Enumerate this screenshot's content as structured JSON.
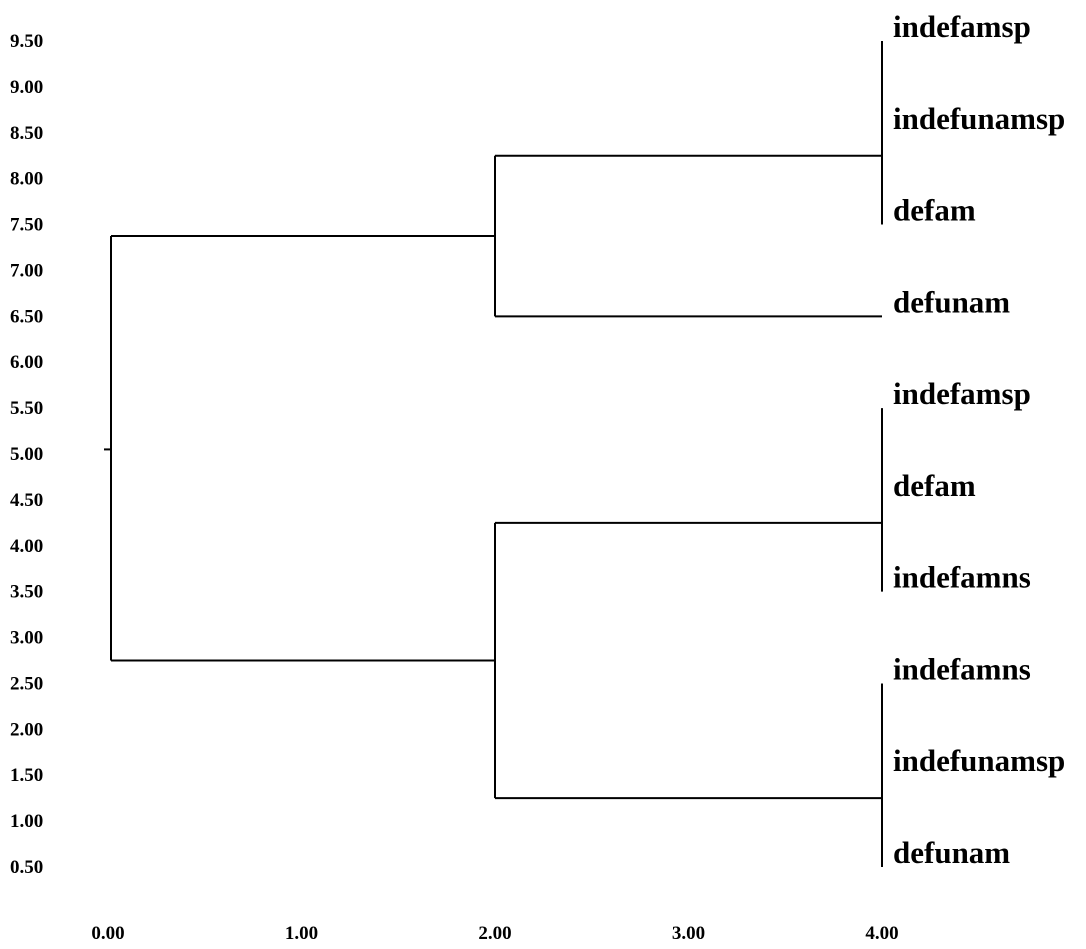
{
  "chart_data": {
    "type": "dendrogram",
    "x_ticks": [
      "0.00",
      "1.00",
      "2.00",
      "3.00",
      "4.00"
    ],
    "y_ticks": [
      "9.50",
      "9.00",
      "8.50",
      "8.00",
      "7.50",
      "7.00",
      "6.50",
      "6.00",
      "5.50",
      "5.00",
      "4.50",
      "4.00",
      "3.50",
      "3.00",
      "2.50",
      "2.00",
      "1.50",
      "1.00",
      "0.50"
    ],
    "xlim": [
      0,
      4
    ],
    "ylim": [
      0.5,
      9.5
    ],
    "leaves": [
      {
        "label": "indefamsp",
        "y": 9.5
      },
      {
        "label": "indefunamsp",
        "y": 8.5
      },
      {
        "label": "defam",
        "y": 7.5
      },
      {
        "label": "defunam",
        "y": 6.5
      },
      {
        "label": "indefamsp",
        "y": 5.5
      },
      {
        "label": "defam",
        "y": 4.5
      },
      {
        "label": "indefamns",
        "y": 3.5
      },
      {
        "label": "indefamns",
        "y": 2.5
      },
      {
        "label": "indefunamsp",
        "y": 1.5
      },
      {
        "label": "defunam",
        "y": 0.5
      }
    ],
    "clusters": [
      {
        "id": "A",
        "x": 4.0,
        "y": 8.25,
        "y_range": [
          7.5,
          9.5
        ]
      },
      {
        "id": "B",
        "x": 2.0,
        "y": 7.375,
        "children_y": [
          8.25,
          6.5
        ]
      },
      {
        "id": "C",
        "x": 4.0,
        "y": 4.25,
        "y_range": [
          3.5,
          5.5
        ]
      },
      {
        "id": "D",
        "x": 4.0,
        "y": 1.25,
        "y_range": [
          0.5,
          2.5
        ]
      },
      {
        "id": "E",
        "x": 2.0,
        "y": 2.75,
        "children_y": [
          4.25,
          1.25
        ]
      },
      {
        "id": "root",
        "x": 0.0,
        "y": 5.05,
        "children_y": [
          7.375,
          2.75
        ]
      }
    ]
  }
}
